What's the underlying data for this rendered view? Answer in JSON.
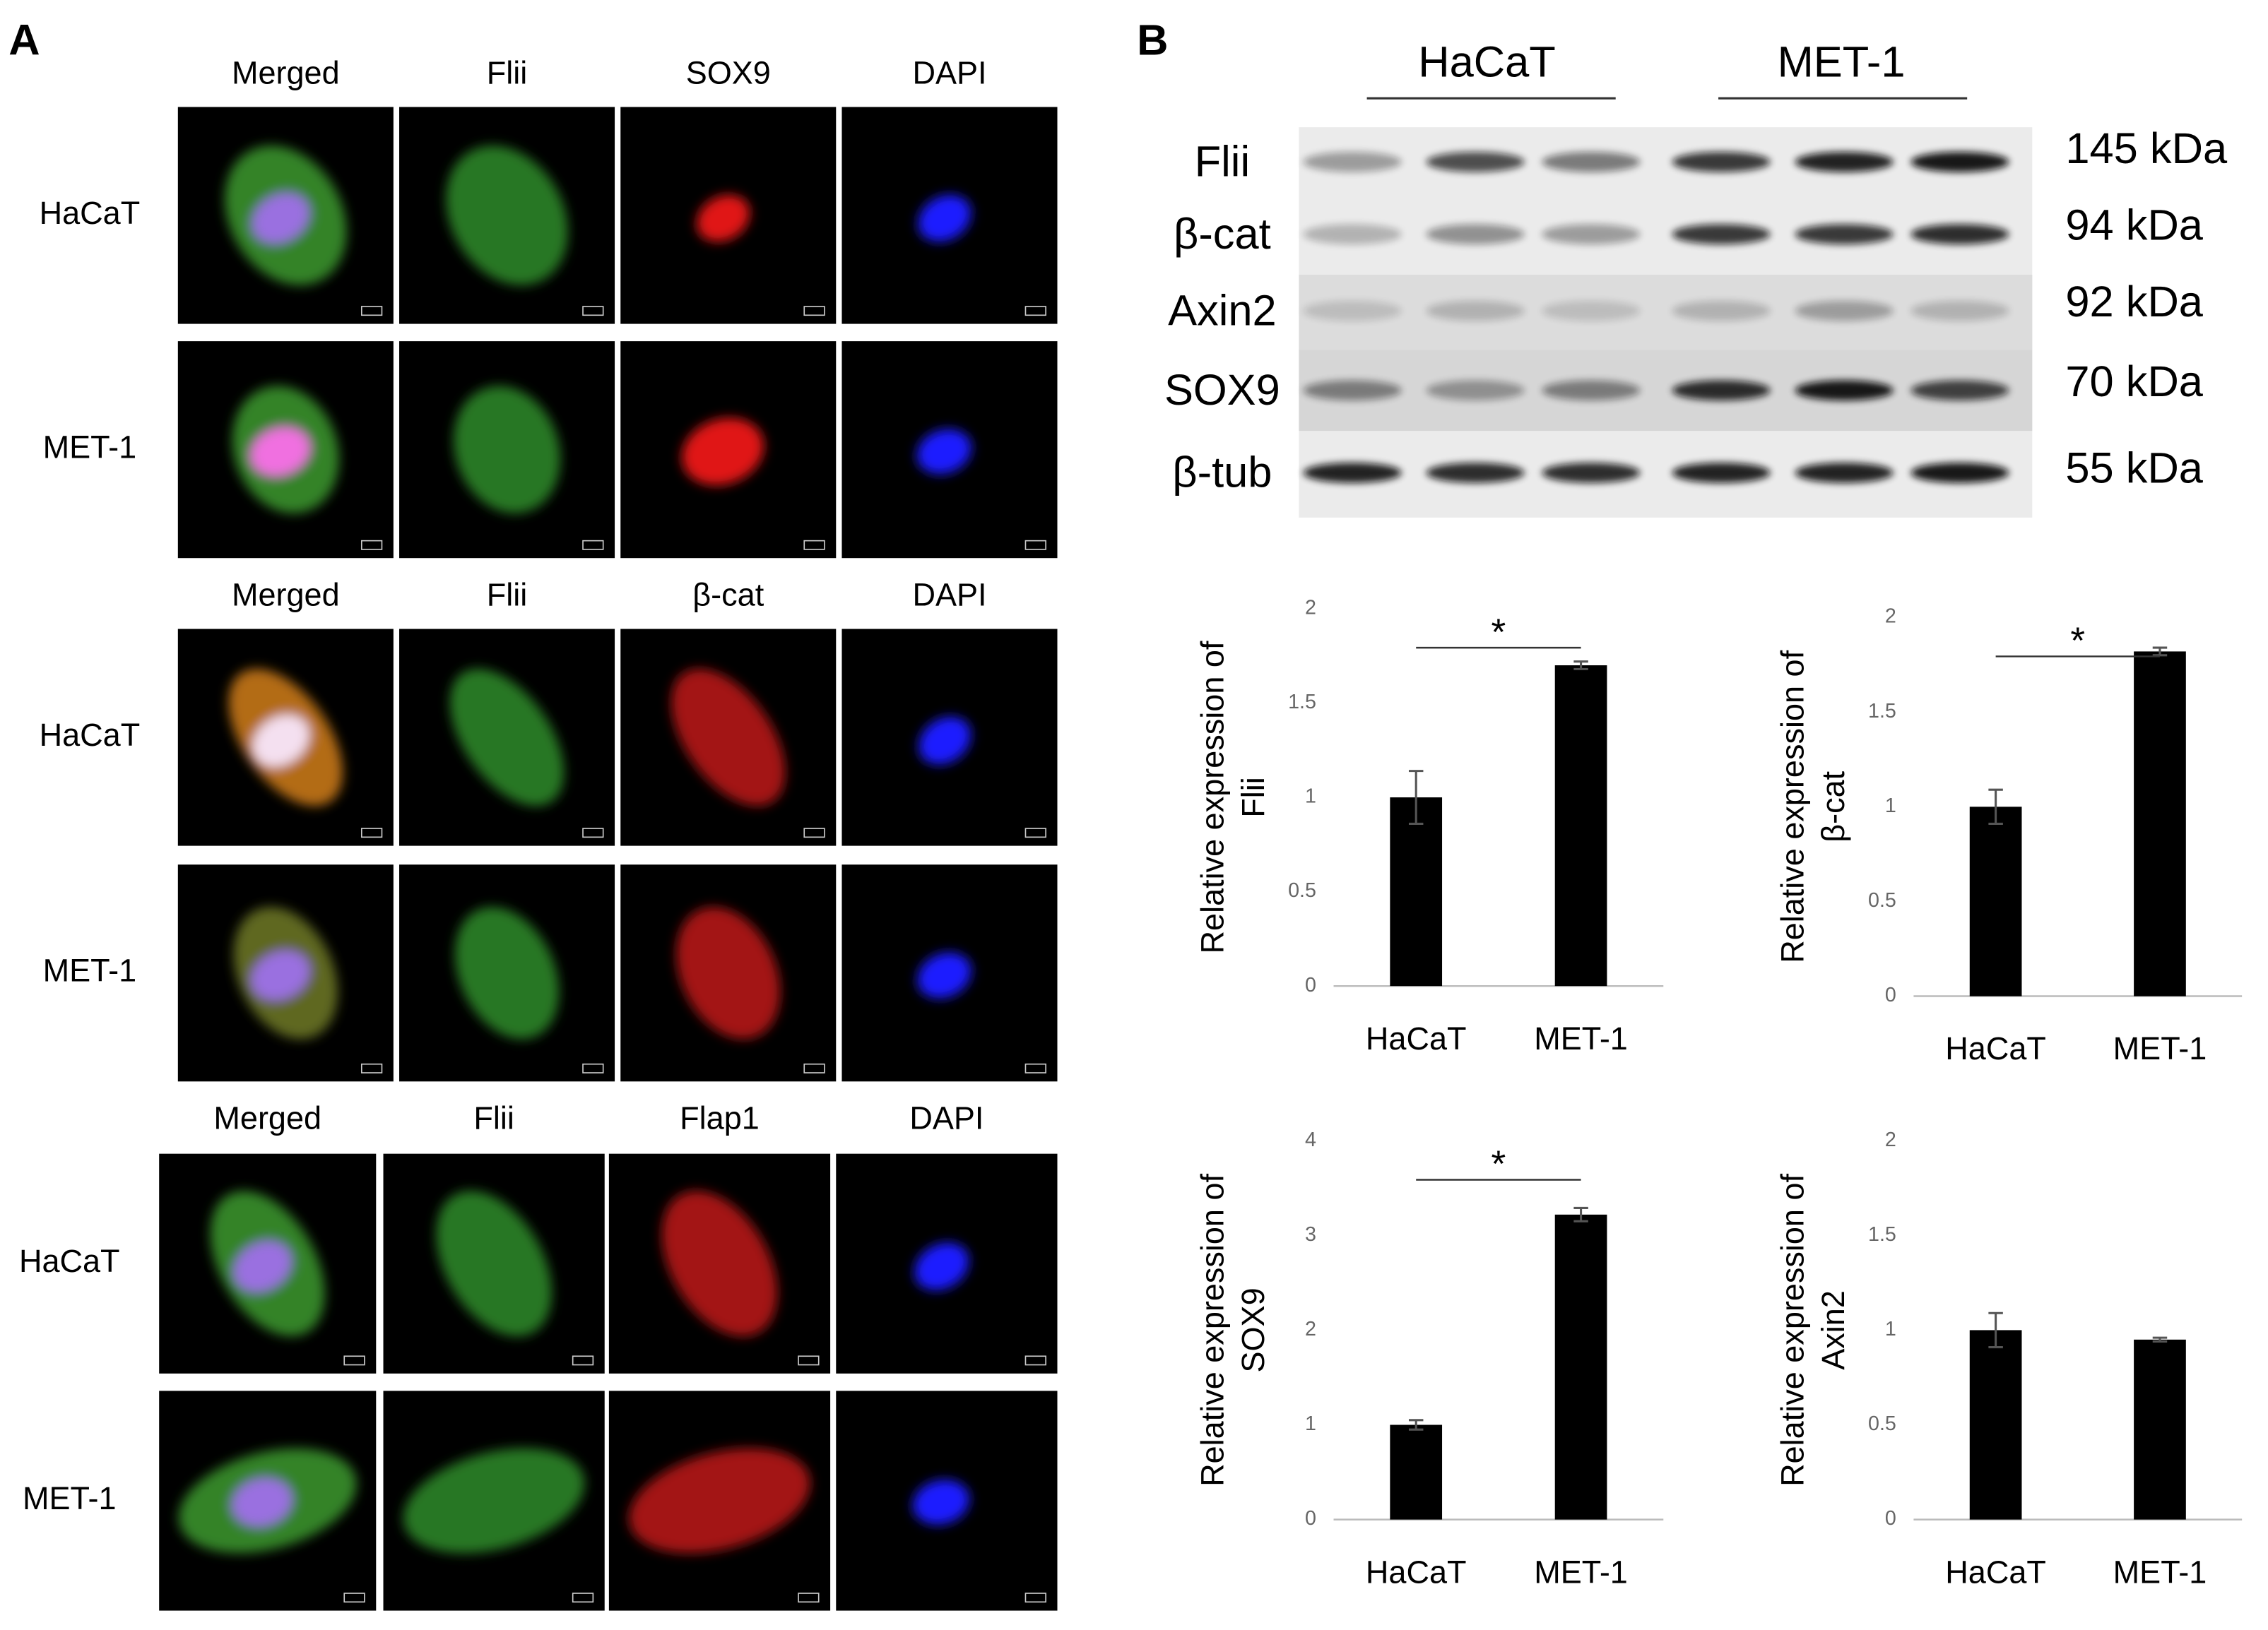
{
  "panel_a": {
    "label": "A",
    "groups": [
      {
        "headers": [
          "Merged",
          "Flii",
          "SOX9",
          "DAPI"
        ],
        "rows": [
          "HaCaT",
          "MET-1"
        ]
      },
      {
        "headers": [
          "Merged",
          "Flii",
          "β-cat",
          "DAPI"
        ],
        "rows": [
          "HaCaT",
          "MET-1"
        ]
      },
      {
        "headers": [
          "Merged",
          "Flii",
          "Flap1",
          "DAPI"
        ],
        "rows": [
          "HaCaT",
          "MET-1"
        ]
      }
    ]
  },
  "panel_b": {
    "label": "B",
    "cell_lines": [
      "HaCaT",
      "MET-1"
    ],
    "blot": {
      "proteins": [
        "Flii",
        "β-cat",
        "Axin2",
        "SOX9",
        "β-tub"
      ],
      "sizes": [
        "145 kDa",
        "94 kDa",
        "92 kDa",
        "70 kDa",
        "55 kDa"
      ]
    }
  },
  "chart_data": [
    {
      "type": "bar",
      "y_label": [
        "Relative expression of",
        "Flii"
      ],
      "categories": [
        "HaCaT",
        "MET-1"
      ],
      "values": [
        1,
        1.7
      ],
      "errors": [
        0.14,
        0.02
      ],
      "color": "#000000",
      "ylim": [
        0,
        2
      ],
      "yticks": [
        0,
        0.5,
        1,
        1.5,
        2
      ],
      "significance": "*"
    },
    {
      "type": "bar",
      "y_label": [
        "Relative expression of",
        "β-cat"
      ],
      "categories": [
        "HaCaT",
        "MET-1"
      ],
      "values": [
        1,
        1.82
      ],
      "errors": [
        0.09,
        0.02
      ],
      "color": "#000000",
      "ylim": [
        0,
        2
      ],
      "yticks": [
        0,
        0.5,
        1,
        1.5,
        2
      ],
      "significance": "*"
    },
    {
      "type": "bar",
      "y_label": [
        "Relative expression of",
        "SOX9"
      ],
      "categories": [
        "HaCaT",
        "MET-1"
      ],
      "values": [
        1,
        3.22
      ],
      "errors": [
        0.05,
        0.07
      ],
      "color": "#000000",
      "ylim": [
        0,
        4
      ],
      "yticks": [
        0,
        1,
        2,
        3,
        4
      ],
      "significance": "*"
    },
    {
      "type": "bar",
      "y_label": [
        "Relative expression of",
        "Axin2"
      ],
      "categories": [
        "HaCaT",
        "MET-1"
      ],
      "values": [
        1,
        0.95
      ],
      "errors": [
        0.09,
        0.01
      ],
      "color": "#000000",
      "ylim": [
        0,
        2
      ],
      "yticks": [
        0,
        0.5,
        1,
        1.5,
        2
      ]
    }
  ]
}
